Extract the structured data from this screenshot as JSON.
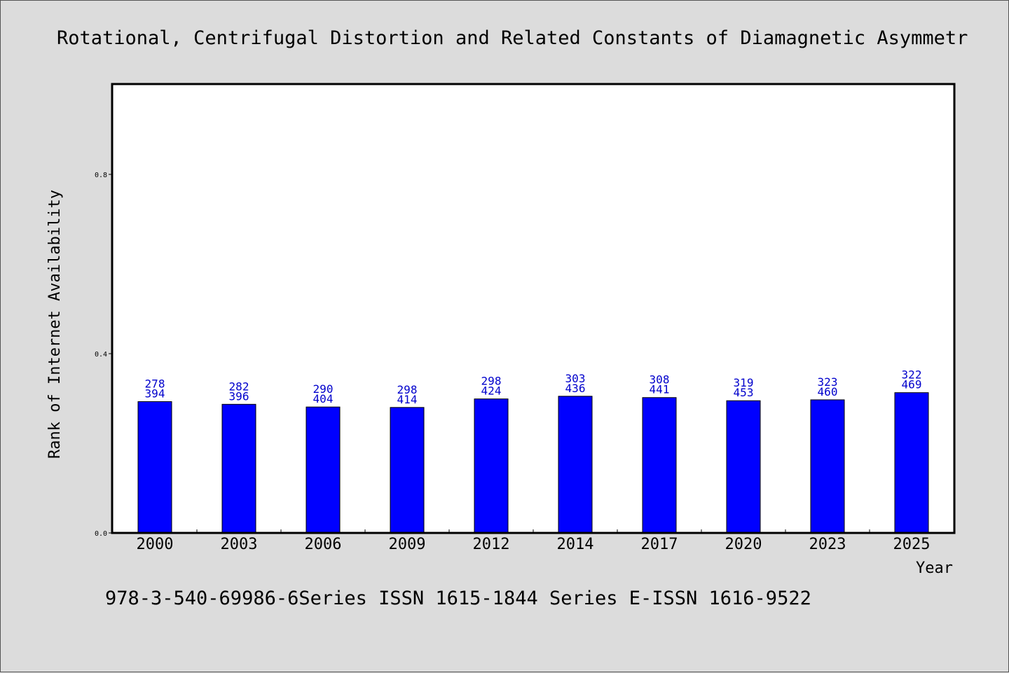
{
  "colors": {
    "background": "#dcdcdc",
    "plot_background": "#ffffff",
    "bar": "#0000ff",
    "data_label": "#0000cc"
  },
  "chart_data": {
    "type": "bar",
    "title": "Rotational, Centrifugal Distortion and Related Constants of Diamagnetic Asymmetr",
    "xlabel": "Year",
    "ylabel": "Rank of Internet Availability",
    "categories": [
      "2000",
      "2003",
      "2006",
      "2009",
      "2012",
      "2014",
      "2017",
      "2020",
      "2023",
      "2025"
    ],
    "values": [
      0.293,
      0.287,
      0.281,
      0.28,
      0.299,
      0.305,
      0.302,
      0.295,
      0.297,
      0.313
    ],
    "data_labels_top": [
      "278",
      "282",
      "290",
      "298",
      "298",
      "303",
      "308",
      "319",
      "323",
      "322"
    ],
    "data_labels_bottom": [
      "394",
      "396",
      "404",
      "414",
      "424",
      "436",
      "441",
      "453",
      "460",
      "469"
    ],
    "ylim": [
      0.0,
      1.0
    ],
    "yticks": [
      0.0,
      0.4,
      0.8
    ],
    "ytick_labels": [
      "0.0",
      "0.4",
      "0.8"
    ],
    "grid": false,
    "legend": "none"
  },
  "footer": {
    "text": "978-3-540-69986-6Series ISSN 1615-1844 Series E-ISSN 1616-9522"
  }
}
